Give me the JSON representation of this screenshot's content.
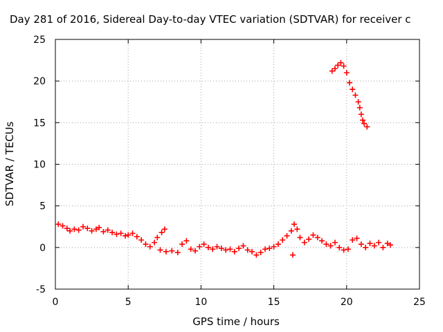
{
  "chart_data": {
    "type": "scatter",
    "title": "Day 281 of 2016, Sidereal Day-to-day VTEC variation (SDTVAR) for receiver c",
    "xlabel": "GPS time / hours",
    "ylabel": "SDTVAR / TECUs",
    "xlim": [
      0,
      25
    ],
    "ylim": [
      -5,
      25
    ],
    "xticks": [
      "0",
      "5",
      "10",
      "15",
      "20",
      "25"
    ],
    "yticks": [
      "-5",
      "0",
      "5",
      "10",
      "15",
      "20",
      "25"
    ],
    "grid": true,
    "marker": "plus",
    "series": [
      {
        "color": "#ff0000",
        "points": [
          [
            0.2,
            2.8
          ],
          [
            0.5,
            2.6
          ],
          [
            0.8,
            2.3
          ],
          [
            1.0,
            2.0
          ],
          [
            1.3,
            2.2
          ],
          [
            1.6,
            2.1
          ],
          [
            1.9,
            2.5
          ],
          [
            2.2,
            2.3
          ],
          [
            2.5,
            2.0
          ],
          [
            2.8,
            2.2
          ],
          [
            3.0,
            2.4
          ],
          [
            3.3,
            1.9
          ],
          [
            3.6,
            2.1
          ],
          [
            3.9,
            1.8
          ],
          [
            4.2,
            1.6
          ],
          [
            4.5,
            1.7
          ],
          [
            4.8,
            1.4
          ],
          [
            5.0,
            1.5
          ],
          [
            5.3,
            1.7
          ],
          [
            5.6,
            1.3
          ],
          [
            5.9,
            0.9
          ],
          [
            6.2,
            0.4
          ],
          [
            6.5,
            0.1
          ],
          [
            6.8,
            0.6
          ],
          [
            7.0,
            1.2
          ],
          [
            7.3,
            1.8
          ],
          [
            7.5,
            2.2
          ],
          [
            7.2,
            -0.3
          ],
          [
            7.6,
            -0.5
          ],
          [
            8.0,
            -0.4
          ],
          [
            8.4,
            -0.6
          ],
          [
            8.7,
            0.4
          ],
          [
            9.0,
            0.8
          ],
          [
            9.3,
            -0.2
          ],
          [
            9.6,
            -0.4
          ],
          [
            9.9,
            0.1
          ],
          [
            10.2,
            0.4
          ],
          [
            10.5,
            0.0
          ],
          [
            10.8,
            -0.2
          ],
          [
            11.1,
            0.1
          ],
          [
            11.4,
            -0.1
          ],
          [
            11.7,
            -0.3
          ],
          [
            12.0,
            -0.2
          ],
          [
            12.3,
            -0.5
          ],
          [
            12.6,
            -0.1
          ],
          [
            12.9,
            0.2
          ],
          [
            13.2,
            -0.3
          ],
          [
            13.5,
            -0.5
          ],
          [
            13.8,
            -0.9
          ],
          [
            14.1,
            -0.6
          ],
          [
            14.4,
            -0.2
          ],
          [
            14.7,
            -0.1
          ],
          [
            15.0,
            0.1
          ],
          [
            15.3,
            0.4
          ],
          [
            15.6,
            0.9
          ],
          [
            15.9,
            1.4
          ],
          [
            16.2,
            2.0
          ],
          [
            16.4,
            2.8
          ],
          [
            16.6,
            2.2
          ],
          [
            16.3,
            -0.9
          ],
          [
            16.8,
            1.2
          ],
          [
            17.1,
            0.6
          ],
          [
            17.4,
            1.0
          ],
          [
            17.7,
            1.5
          ],
          [
            18.0,
            1.2
          ],
          [
            18.3,
            0.8
          ],
          [
            18.6,
            0.4
          ],
          [
            18.9,
            0.2
          ],
          [
            19.2,
            0.6
          ],
          [
            19.5,
            0.0
          ],
          [
            19.8,
            -0.3
          ],
          [
            20.1,
            -0.2
          ],
          [
            20.4,
            0.9
          ],
          [
            20.7,
            1.1
          ],
          [
            21.0,
            0.4
          ],
          [
            21.3,
            0.0
          ],
          [
            21.6,
            0.5
          ],
          [
            21.9,
            0.2
          ],
          [
            22.2,
            0.6
          ],
          [
            22.5,
            0.0
          ],
          [
            22.8,
            0.5
          ],
          [
            23.0,
            0.3
          ],
          [
            19.0,
            21.2
          ],
          [
            19.2,
            21.5
          ],
          [
            19.4,
            21.9
          ],
          [
            19.6,
            22.2
          ],
          [
            19.8,
            21.8
          ],
          [
            20.0,
            21.0
          ],
          [
            20.2,
            19.8
          ],
          [
            20.4,
            19.0
          ],
          [
            20.6,
            18.3
          ],
          [
            20.8,
            17.5
          ],
          [
            20.9,
            16.8
          ],
          [
            21.0,
            16.0
          ],
          [
            21.1,
            15.3
          ],
          [
            21.2,
            14.9
          ],
          [
            21.4,
            14.5
          ]
        ]
      }
    ]
  }
}
